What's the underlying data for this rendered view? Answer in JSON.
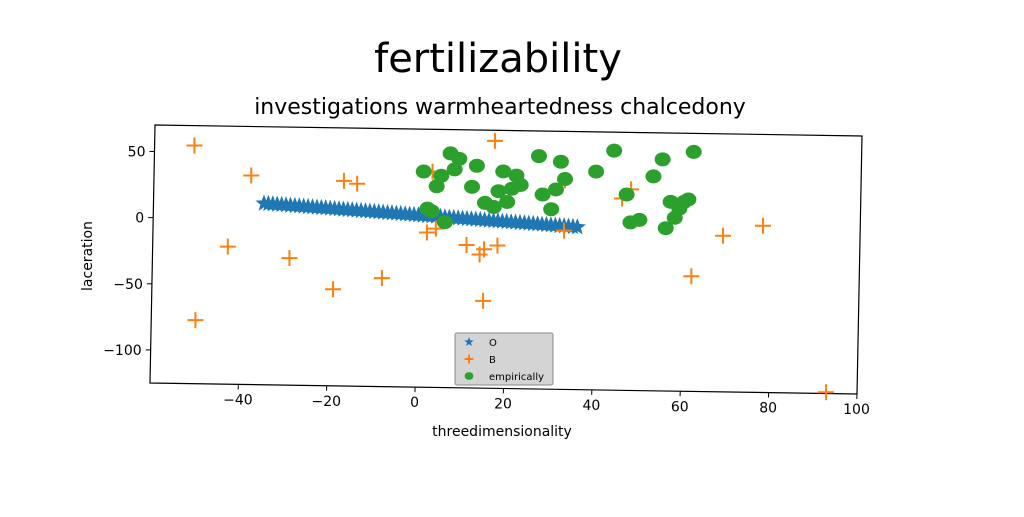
{
  "chart_data": {
    "type": "scatter",
    "title": "fertilizability",
    "subtitle": "investigations warmheartedness chalcedony",
    "xlabel": "threedimensionality",
    "ylabel": "laceration",
    "xlim": [
      -60,
      100
    ],
    "ylim": [
      -125,
      70
    ],
    "xticks": [
      -40,
      -20,
      0,
      20,
      40,
      60,
      80,
      100
    ],
    "yticks": [
      -100,
      -50,
      0,
      50
    ],
    "grid": false,
    "legend": "lower center",
    "series": [
      {
        "name": "O",
        "marker": "star",
        "color": "#1f77b4",
        "x": [
          -35,
          -34,
          -33,
          -32,
          -31,
          -30,
          -29,
          -28,
          -27,
          -26,
          -25,
          -24,
          -23,
          -22,
          -21,
          -20,
          -19,
          -18,
          -17,
          -16,
          -15,
          -14,
          -13,
          -12,
          -11,
          -10,
          -9,
          -8,
          -7,
          -6,
          -5,
          -4,
          -3,
          -2,
          -1,
          0,
          1,
          2,
          3,
          4,
          5,
          6,
          7,
          8,
          9,
          10,
          11,
          12,
          13,
          14,
          15,
          16,
          17,
          18,
          19,
          20,
          21,
          22,
          23,
          24,
          25,
          26,
          27,
          28,
          29,
          30,
          31,
          32,
          33,
          34,
          35,
          36
        ],
        "y": [
          12.0,
          11.8,
          11.6,
          11.4,
          11.2,
          11.0,
          10.8,
          10.6,
          10.4,
          10.2,
          10.0,
          9.8,
          9.6,
          9.4,
          9.2,
          9.0,
          8.8,
          8.6,
          8.4,
          8.2,
          8.0,
          7.8,
          7.6,
          7.4,
          7.2,
          7.0,
          6.8,
          6.6,
          6.4,
          6.2,
          6.0,
          5.8,
          5.6,
          5.4,
          5.2,
          5.0,
          4.8,
          4.6,
          4.4,
          4.2,
          4.0,
          3.8,
          3.6,
          3.4,
          3.2,
          3.0,
          2.8,
          2.6,
          2.4,
          2.2,
          2.0,
          1.8,
          1.6,
          1.4,
          1.2,
          1.0,
          0.8,
          0.6,
          0.4,
          0.2,
          0.0,
          -0.2,
          -0.4,
          -0.6,
          -0.8,
          -1.0,
          -1.2,
          -1.4,
          -1.6,
          -1.8,
          -2.0,
          -2.2
        ]
      },
      {
        "name": "B",
        "marker": "plus",
        "color": "#ff7f0e",
        "x": [
          -51,
          -38,
          -43,
          -29,
          -17,
          -14,
          -19,
          -8,
          -50,
          3,
          2,
          4,
          11,
          14,
          15,
          18,
          15,
          17,
          33,
          33,
          46,
          48,
          62,
          69,
          78,
          93
        ],
        "y": [
          55,
          33,
          -21,
          -29,
          30,
          28,
          -52,
          -43,
          -77,
          38,
          -8,
          -5,
          -17,
          -24,
          -20,
          -17,
          -59,
          62,
          33,
          -5,
          20,
          27,
          -38,
          -7,
          1,
          -124
        ]
      },
      {
        "name": "empirically",
        "marker": "circle",
        "color": "#2ca02c",
        "x": [
          1,
          2,
          3,
          4,
          5,
          6,
          7,
          8,
          9,
          12,
          13,
          15,
          17,
          18,
          19,
          20,
          21,
          22,
          23,
          27,
          28,
          30,
          31,
          32,
          33,
          40,
          44,
          47,
          48,
          50,
          53,
          55,
          56,
          57,
          58,
          59,
          60,
          61,
          62
        ],
        "y": [
          38,
          10,
          8,
          27,
          35,
          0,
          52,
          40,
          48,
          27,
          43,
          15,
          12,
          24,
          39,
          16,
          26,
          36,
          29,
          51,
          22,
          11,
          26,
          47,
          34,
          40,
          56,
          23,
          2,
          4,
          37,
          50,
          -2,
          18,
          6,
          13,
          18,
          20,
          56
        ]
      }
    ]
  }
}
